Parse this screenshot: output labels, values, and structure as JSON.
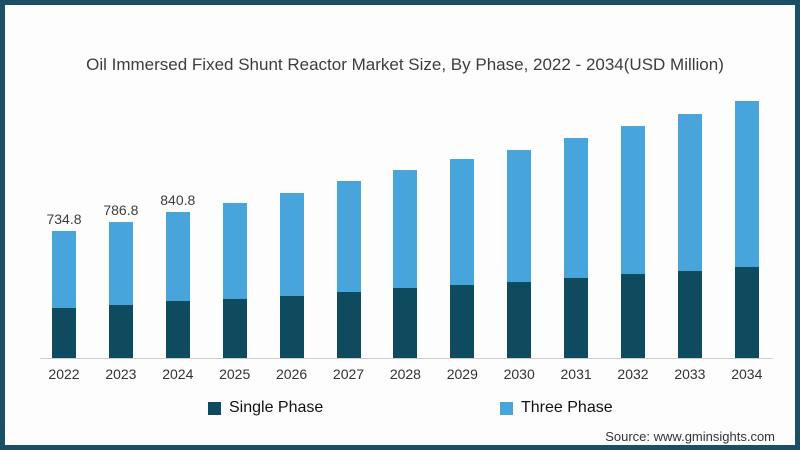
{
  "frame": {
    "border_color": "#1b4f63",
    "background": "#fdfdfd"
  },
  "title": "Oil Immersed Fixed Shunt Reactor Market Size, By Phase, 2022 - 2034(USD Million)",
  "source": "Source: www.gminsights.com",
  "legend": {
    "items": [
      {
        "label": "Single Phase",
        "color": "#0f4b5e"
      },
      {
        "label": "Three Phase",
        "color": "#48a5db"
      }
    ]
  },
  "chart_data": {
    "type": "bar",
    "stacked": true,
    "title": "Oil Immersed Fixed Shunt Reactor Market Size, By Phase, 2022 - 2034(USD Million)",
    "xlabel": "",
    "ylabel": "USD Million",
    "y_axis_visible": false,
    "grid": false,
    "legend_position": "bottom",
    "ylim": [
      0,
      1500
    ],
    "categories": [
      "2022",
      "2023",
      "2024",
      "2025",
      "2026",
      "2027",
      "2028",
      "2029",
      "2030",
      "2031",
      "2032",
      "2033",
      "2034"
    ],
    "series": [
      {
        "name": "Single Phase",
        "color": "#0f4b5e",
        "values": [
          288,
          306,
          328,
          340,
          357,
          380,
          403,
          420,
          440,
          461,
          484,
          501,
          524
        ]
      },
      {
        "name": "Three Phase",
        "color": "#48a5db",
        "values": [
          446.8,
          480.8,
          512.8,
          553,
          598,
          640,
          680,
          726,
          765,
          812,
          858,
          910,
          962
        ]
      }
    ],
    "totals": [
      734.8,
      786.8,
      840.8,
      893,
      955,
      1020,
      1083,
      1146,
      1205,
      1273,
      1342,
      1411,
      1486
    ],
    "bar_labels": [
      "734.8",
      "786.8",
      "840.8",
      "",
      "",
      "",
      "",
      "",
      "",
      "",
      "",
      "",
      ""
    ],
    "axis_line_color": "#cccccc"
  }
}
